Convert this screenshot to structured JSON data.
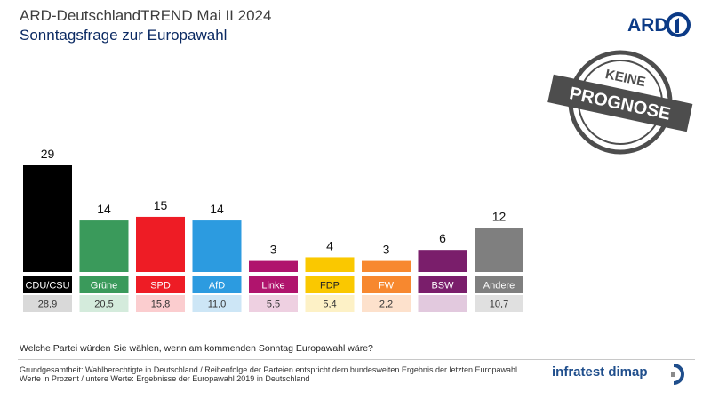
{
  "header": {
    "title": "ARD-DeutschlandTREND Mai II 2024",
    "subtitle": "Sonntagsfrage zur Europawahl"
  },
  "logo": {
    "text": "ARD",
    "icon": "ard-one-icon"
  },
  "stamp": {
    "line1": "KEINE",
    "line2": "PROGNOSE"
  },
  "chart_data": {
    "type": "bar",
    "categories": [
      "CDU/CSU",
      "Grüne",
      "SPD",
      "AfD",
      "Linke",
      "FDP",
      "FW",
      "BSW",
      "Andere"
    ],
    "values": [
      29,
      14,
      15,
      14,
      3,
      4,
      3,
      6,
      12
    ],
    "previous_values": [
      "28,9",
      "20,5",
      "15,8",
      "11,0",
      "5,5",
      "5,4",
      "2,2",
      "",
      "10,7"
    ],
    "colors": [
      "#000000",
      "#3a9a5b",
      "#ee1c25",
      "#2c9be0",
      "#b0146d",
      "#fac800",
      "#f7882f",
      "#7a1e6b",
      "#7f7f7f"
    ],
    "prev_colors": [
      "#d9d9d9",
      "#d4ebdc",
      "#fbcdcf",
      "#cde6f6",
      "#eed0e1",
      "#fdf1c6",
      "#fde1cc",
      "#e2c9de",
      "#e0e0e0"
    ],
    "label_text_colors": [
      "#ffffff",
      "#ffffff",
      "#ffffff",
      "#ffffff",
      "#ffffff",
      "#222222",
      "#ffffff",
      "#ffffff",
      "#ffffff"
    ],
    "ylim": [
      0,
      29
    ]
  },
  "question": "Welche Partei würden Sie wählen, wenn am kommenden Sonntag Europawahl wäre?",
  "footer": {
    "line1": "Grundgesamtheit:  Wahlberechtigte in Deutschland   / Reihenfolge  der Parteien entspricht dem bundesweiten  Ergebnis der letzten Europawahl",
    "line2": "Werte in Prozent / untere Werte: Ergebnisse der Europawahl 2019 in Deutschland"
  },
  "brand": {
    "name": "infratest dimap"
  }
}
